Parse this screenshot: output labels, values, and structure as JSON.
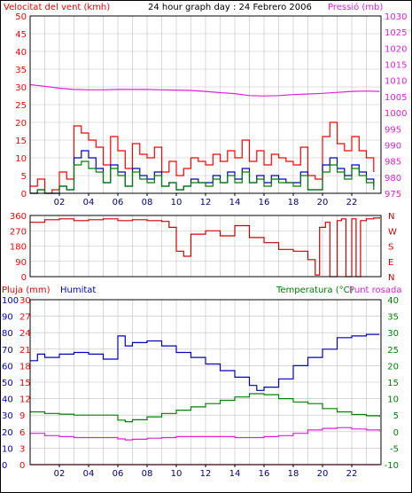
{
  "header": {
    "wind_label": "Velocitat del vent (kmh)",
    "title": "24 hour graph day : 24 Febrero 2006",
    "pressure_label": "Pressió (mb)"
  },
  "panel2": {
    "compass_labels": [
      "N",
      "W",
      "S",
      "E",
      "N"
    ]
  },
  "panel3": {
    "rain_label": "Pluja (mm)",
    "humidity_label": "Humitat",
    "temperature_label": "Temperatura (°C)",
    "dewpoint_label": "Punt rosada"
  },
  "colors": {
    "gust": "#ff0000",
    "wind_avg": "#008000",
    "wind_dir_series": "#0000c0",
    "pressure": "#e020e0",
    "direction": "#d00000",
    "humidity": "#0000c0",
    "temperature": "#008000",
    "dewpoint": "#e020e0",
    "frame": "#000000",
    "grid": "#c0c0c0"
  },
  "chart_data": [
    {
      "id": "wind_pressure",
      "type": "line",
      "title": "24 hour graph day : 24 Febrero 2006",
      "xlabel": "",
      "x_ticks": [
        "02",
        "04",
        "06",
        "08",
        "10",
        "12",
        "14",
        "16",
        "18",
        "20",
        "22"
      ],
      "x_range": [
        0,
        24
      ],
      "ylabel": "Velocitat del vent (kmh)",
      "ylim": [
        0,
        50
      ],
      "y_ticks": [
        0,
        5,
        10,
        15,
        20,
        25,
        30,
        35,
        40,
        45,
        50
      ],
      "y2label": "Pressió (mb)",
      "y2lim": [
        975,
        1030
      ],
      "y2_ticks": [
        975,
        980,
        985,
        990,
        995,
        1000,
        1005,
        1010,
        1015,
        1020,
        1025,
        1030
      ],
      "grid": true,
      "series": [
        {
          "name": "",
          "axis": "y",
          "color": "#ff0000",
          "x": [
            0,
            0.5,
            1,
            1.5,
            2,
            2.5,
            3,
            3.5,
            4,
            4.5,
            5,
            5.5,
            6,
            6.5,
            7,
            7.5,
            8,
            8.5,
            9,
            9.5,
            10,
            10.5,
            11,
            11.5,
            12,
            12.5,
            13,
            13.5,
            14,
            14.5,
            15,
            15.5,
            16,
            16.5,
            17,
            17.5,
            18,
            18.5,
            19,
            19.5,
            20,
            20.5,
            21,
            21.5,
            22,
            22.5,
            23,
            23.5
          ],
          "y": [
            2,
            4,
            0,
            1,
            6,
            4,
            19,
            17,
            15,
            13,
            8,
            16,
            12,
            7,
            14,
            11,
            10,
            13,
            6,
            9,
            5,
            7,
            10,
            9,
            8,
            11,
            9,
            12,
            10,
            15,
            9,
            12,
            8,
            11,
            10,
            9,
            8,
            13,
            5,
            4,
            16,
            20,
            14,
            12,
            16,
            12,
            10,
            6
          ]
        },
        {
          "name": "",
          "axis": "y",
          "color": "#0000c0",
          "x": [
            0,
            0.5,
            1,
            1.5,
            2,
            2.5,
            3,
            3.5,
            4,
            4.5,
            5,
            5.5,
            6,
            6.5,
            7,
            7.5,
            8,
            8.5,
            9,
            9.5,
            10,
            10.5,
            11,
            11.5,
            12,
            12.5,
            13,
            13.5,
            14,
            14.5,
            15,
            15.5,
            16,
            16.5,
            17,
            17.5,
            18,
            18.5,
            19,
            19.5,
            20,
            20.5,
            21,
            21.5,
            22,
            22.5,
            23,
            23.5
          ],
          "y": [
            0,
            1,
            0,
            0,
            2,
            1,
            10,
            12,
            10,
            7,
            3,
            8,
            6,
            2,
            7,
            5,
            4,
            6,
            2,
            3,
            1,
            2,
            4,
            3,
            3,
            5,
            3,
            6,
            4,
            7,
            3,
            5,
            3,
            5,
            4,
            3,
            3,
            6,
            1,
            1,
            8,
            10,
            7,
            5,
            8,
            6,
            4,
            2
          ]
        },
        {
          "name": "",
          "axis": "y",
          "color": "#008000",
          "x": [
            0,
            0.5,
            1,
            1.5,
            2,
            2.5,
            3,
            3.5,
            4,
            4.5,
            5,
            5.5,
            6,
            6.5,
            7,
            7.5,
            8,
            8.5,
            9,
            9.5,
            10,
            10.5,
            11,
            11.5,
            12,
            12.5,
            13,
            13.5,
            14,
            14.5,
            15,
            15.5,
            16,
            16.5,
            17,
            17.5,
            18,
            18.5,
            19,
            19.5,
            20,
            20.5,
            21,
            21.5,
            22,
            22.5,
            23,
            23.5
          ],
          "y": [
            0,
            1,
            0,
            0,
            2,
            1,
            8,
            9,
            7,
            6,
            3,
            7,
            5,
            2,
            6,
            4,
            3,
            5,
            2,
            3,
            1,
            2,
            3,
            3,
            2,
            4,
            3,
            5,
            3,
            6,
            3,
            4,
            2,
            4,
            3,
            3,
            2,
            5,
            1,
            1,
            6,
            8,
            6,
            4,
            7,
            5,
            3,
            1
          ]
        },
        {
          "name": "",
          "axis": "y2",
          "color": "#e020e0",
          "x": [
            0,
            1,
            2,
            3,
            4,
            5,
            6,
            7,
            8,
            9,
            10,
            11,
            12,
            13,
            14,
            15,
            16,
            17,
            18,
            19,
            20,
            21,
            22,
            23,
            23.9
          ],
          "y": [
            1008.7,
            1008.2,
            1007.6,
            1007.2,
            1007.1,
            1007.1,
            1007.2,
            1007.2,
            1007.2,
            1007.1,
            1007.0,
            1006.9,
            1006.6,
            1006.2,
            1005.9,
            1005.3,
            1005.2,
            1005.3,
            1005.6,
            1005.8,
            1006.0,
            1006.3,
            1006.6,
            1006.7,
            1006.6
          ]
        }
      ]
    },
    {
      "id": "wind_direction",
      "type": "line",
      "title": "",
      "x_range": [
        0,
        24
      ],
      "ylim": [
        0,
        360
      ],
      "y_ticks": [
        0,
        90,
        180,
        270,
        360
      ],
      "y2_labels": [
        "N",
        "W",
        "S",
        "E",
        "N"
      ],
      "grid": true,
      "series": [
        {
          "name": "",
          "color": "#d00000",
          "x": [
            0,
            1,
            2,
            3,
            4,
            5,
            6,
            7,
            8,
            9,
            9.5,
            10,
            10.5,
            11,
            12,
            13,
            14,
            15,
            16,
            17,
            18,
            19,
            19.5,
            19.8,
            20.2,
            20.5,
            21,
            21.3,
            21.6,
            22,
            22.3,
            22.6,
            23,
            23.5,
            23.9
          ],
          "y": [
            320,
            335,
            340,
            330,
            335,
            340,
            330,
            335,
            330,
            325,
            290,
            150,
            120,
            250,
            270,
            240,
            300,
            230,
            200,
            160,
            150,
            100,
            10,
            290,
            320,
            0,
            330,
            340,
            0,
            340,
            0,
            330,
            340,
            345,
            350
          ]
        }
      ]
    },
    {
      "id": "temp_humidity",
      "type": "line",
      "title": "",
      "x_ticks": [
        "02",
        "04",
        "06",
        "08",
        "10",
        "12",
        "14",
        "16",
        "18",
        "20",
        "22"
      ],
      "x_range": [
        0,
        24
      ],
      "y_left_rain_label": "Pluja (mm)",
      "y_left_rain_ticks": [
        0,
        3,
        6,
        9,
        12,
        15,
        18,
        21,
        24,
        27,
        30
      ],
      "y_left_humidity_label": "Humitat",
      "y_left_humidity_ticks": [
        0,
        10,
        20,
        30,
        40,
        50,
        60,
        70,
        80,
        90,
        100
      ],
      "y2label": "Temperatura (°C)",
      "y2lim": [
        -10,
        40
      ],
      "y2_ticks": [
        -10,
        -5,
        0,
        5,
        10,
        15,
        20,
        25,
        30,
        35,
        40
      ],
      "grid": true,
      "series": [
        {
          "name": "Humitat",
          "axis": "humidity",
          "color": "#0000c0",
          "x": [
            0,
            0.5,
            1,
            2,
            3,
            4,
            5,
            6,
            6.5,
            7,
            8,
            9,
            10,
            11,
            12,
            13,
            14,
            15,
            15.5,
            16,
            17,
            18,
            19,
            20,
            21,
            22,
            23,
            23.9
          ],
          "y": [
            63,
            67,
            65,
            67,
            68,
            67,
            64,
            78,
            72,
            74,
            75,
            72,
            68,
            65,
            61,
            57,
            53,
            48,
            45,
            47,
            52,
            60,
            65,
            70,
            77,
            78,
            79,
            79
          ]
        },
        {
          "name": "Temperatura (°C)",
          "axis": "y2",
          "color": "#008000",
          "x": [
            0,
            1,
            2,
            3,
            4,
            5,
            6,
            6.5,
            7,
            8,
            9,
            10,
            11,
            12,
            13,
            14,
            15,
            16,
            17,
            18,
            19,
            20,
            21,
            22,
            23,
            23.9
          ],
          "y": [
            6.0,
            5.5,
            5.3,
            5.0,
            5.0,
            5.0,
            3.5,
            3.0,
            3.6,
            4.5,
            5.5,
            6.5,
            7.5,
            8.5,
            9.5,
            10.5,
            11.5,
            11.2,
            10.0,
            9.0,
            8.5,
            7.0,
            6.0,
            5.2,
            4.8,
            4.5
          ]
        },
        {
          "name": "Punt rosada",
          "axis": "y2",
          "color": "#e020e0",
          "x": [
            0,
            1,
            2,
            3,
            4,
            5,
            6,
            6.5,
            7,
            8,
            9,
            10,
            11,
            12,
            13,
            14,
            15,
            16,
            17,
            18,
            19,
            20,
            21,
            22,
            23,
            23.9
          ],
          "y": [
            -0.5,
            -1.2,
            -1.5,
            -1.8,
            -1.8,
            -1.8,
            -2.2,
            -2.5,
            -2.3,
            -2.0,
            -1.8,
            -1.5,
            -1.5,
            -1.5,
            -1.5,
            -1.8,
            -1.8,
            -1.5,
            -1.2,
            -0.5,
            0.5,
            1.0,
            1.2,
            0.8,
            0.5,
            0.2
          ]
        },
        {
          "name": "Pluja (mm)",
          "axis": "rain",
          "color": "#ff0000",
          "x": [
            0,
            23.9
          ],
          "y": [
            0,
            0
          ]
        }
      ]
    }
  ]
}
